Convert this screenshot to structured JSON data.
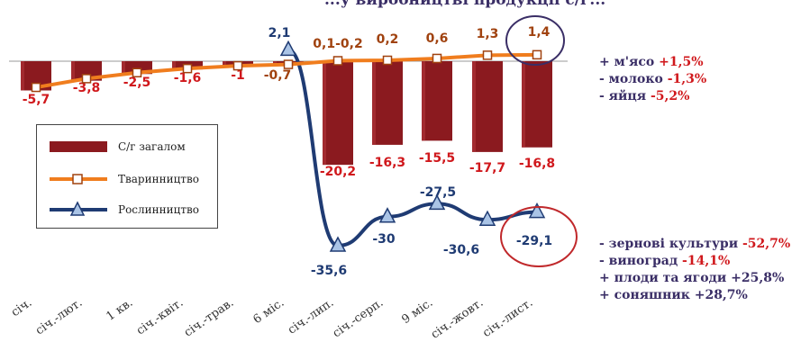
{
  "chart_data": {
    "type": "bar+line",
    "title": "...у виробництві продукції с/г...",
    "categories": [
      "січ.",
      "січ.-лют.",
      "1 кв.",
      "січ.-квіт.",
      "січ.-трав.",
      "6 міс.",
      "січ.-лип.",
      "січ.-серп.",
      "9 міс.",
      "січ.-жовт.",
      "січ.-лист."
    ],
    "series": [
      {
        "name": "С/г загалом",
        "type": "bar",
        "color": "#8b1a1f",
        "values": [
          -5.7,
          -3.8,
          -2.5,
          -1.6,
          -1.0,
          -0.7,
          -20.2,
          -16.3,
          -15.5,
          -17.7,
          -16.8
        ],
        "labels": [
          "-5,7",
          "-3,8",
          "-2,5",
          "-1,6",
          "-1",
          "-0,7",
          "-20,2",
          "-16,3",
          "-15,5",
          "-17,7",
          "-16,8"
        ]
      },
      {
        "name": "Тваринництво",
        "type": "line",
        "color": "#f07d1e",
        "values": [
          -5.7,
          -3.8,
          -2.5,
          -1.6,
          -1.0,
          -0.7,
          0.1,
          0.2,
          0.6,
          1.3,
          1.4
        ],
        "labels": [
          "",
          "",
          "",
          "",
          "",
          "",
          "0,1-0,2",
          "0,2",
          "0,6",
          "1,3",
          "1,4"
        ]
      },
      {
        "name": "Рослинництво",
        "type": "line",
        "color": "#1f3b73",
        "values": [
          null,
          null,
          null,
          null,
          null,
          2.1,
          -35.6,
          -30,
          -27.5,
          -30.6,
          -29.1
        ],
        "labels": [
          "",
          "",
          "",
          "",
          "",
          "2,1",
          "-35,6",
          "-30",
          "-27,5",
          "-30,6",
          "-29,1"
        ]
      }
    ],
    "legend_position": "left",
    "grid": false
  },
  "legend": {
    "total": "С/г загалом",
    "livestock": "Тваринництво",
    "crops": "Рослинництво"
  },
  "notes_livestock": [
    {
      "prefix": "+ м'ясо ",
      "value": "+1,5%"
    },
    {
      "prefix": "- молоко ",
      "value": "-1,3%"
    },
    {
      "prefix": "- яйця ",
      "value": "-5,2%"
    }
  ],
  "notes_crops": [
    {
      "prefix": "- зернові культури ",
      "value": "-52,7%"
    },
    {
      "prefix": "- виноград ",
      "value": "-14,1%"
    },
    {
      "prefix": "+ плоди та ягоди ",
      "value": "+25,8%"
    },
    {
      "prefix": "+ соняшник ",
      "value": "+28,7%"
    }
  ],
  "colors": {
    "bar": "#8b1a1f",
    "livestock": "#f07d1e",
    "crops": "#1f3b73",
    "label_red": "#d0181c",
    "label_brown": "#a0420f",
    "label_blue": "#1f3b73",
    "highlight_circle_top": "#3a2e66",
    "highlight_circle_bottom": "#c0282b"
  }
}
